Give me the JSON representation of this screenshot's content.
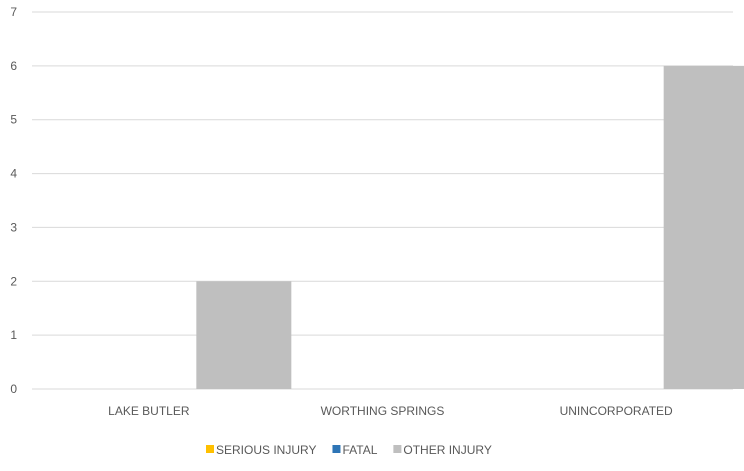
{
  "chart_data": {
    "type": "bar",
    "title": "",
    "xlabel": "",
    "ylabel": "",
    "categories": [
      "LAKE BUTLER",
      "WORTHING SPRINGS",
      "UNINCORPORATED"
    ],
    "series": [
      {
        "name": "SERIOUS INJURY",
        "color": "#FFC000",
        "values": [
          0,
          0,
          0
        ]
      },
      {
        "name": "FATAL",
        "color": "#2E75B6",
        "values": [
          0,
          0,
          0
        ]
      },
      {
        "name": "OTHER INJURY",
        "color": "#BFBFBF",
        "values": [
          2,
          0,
          6
        ]
      }
    ],
    "ylim": [
      0,
      7
    ],
    "yticks": [
      "0",
      "1",
      "2",
      "3",
      "4",
      "5",
      "6",
      "7"
    ],
    "grid": true,
    "legend_position": "bottom"
  }
}
